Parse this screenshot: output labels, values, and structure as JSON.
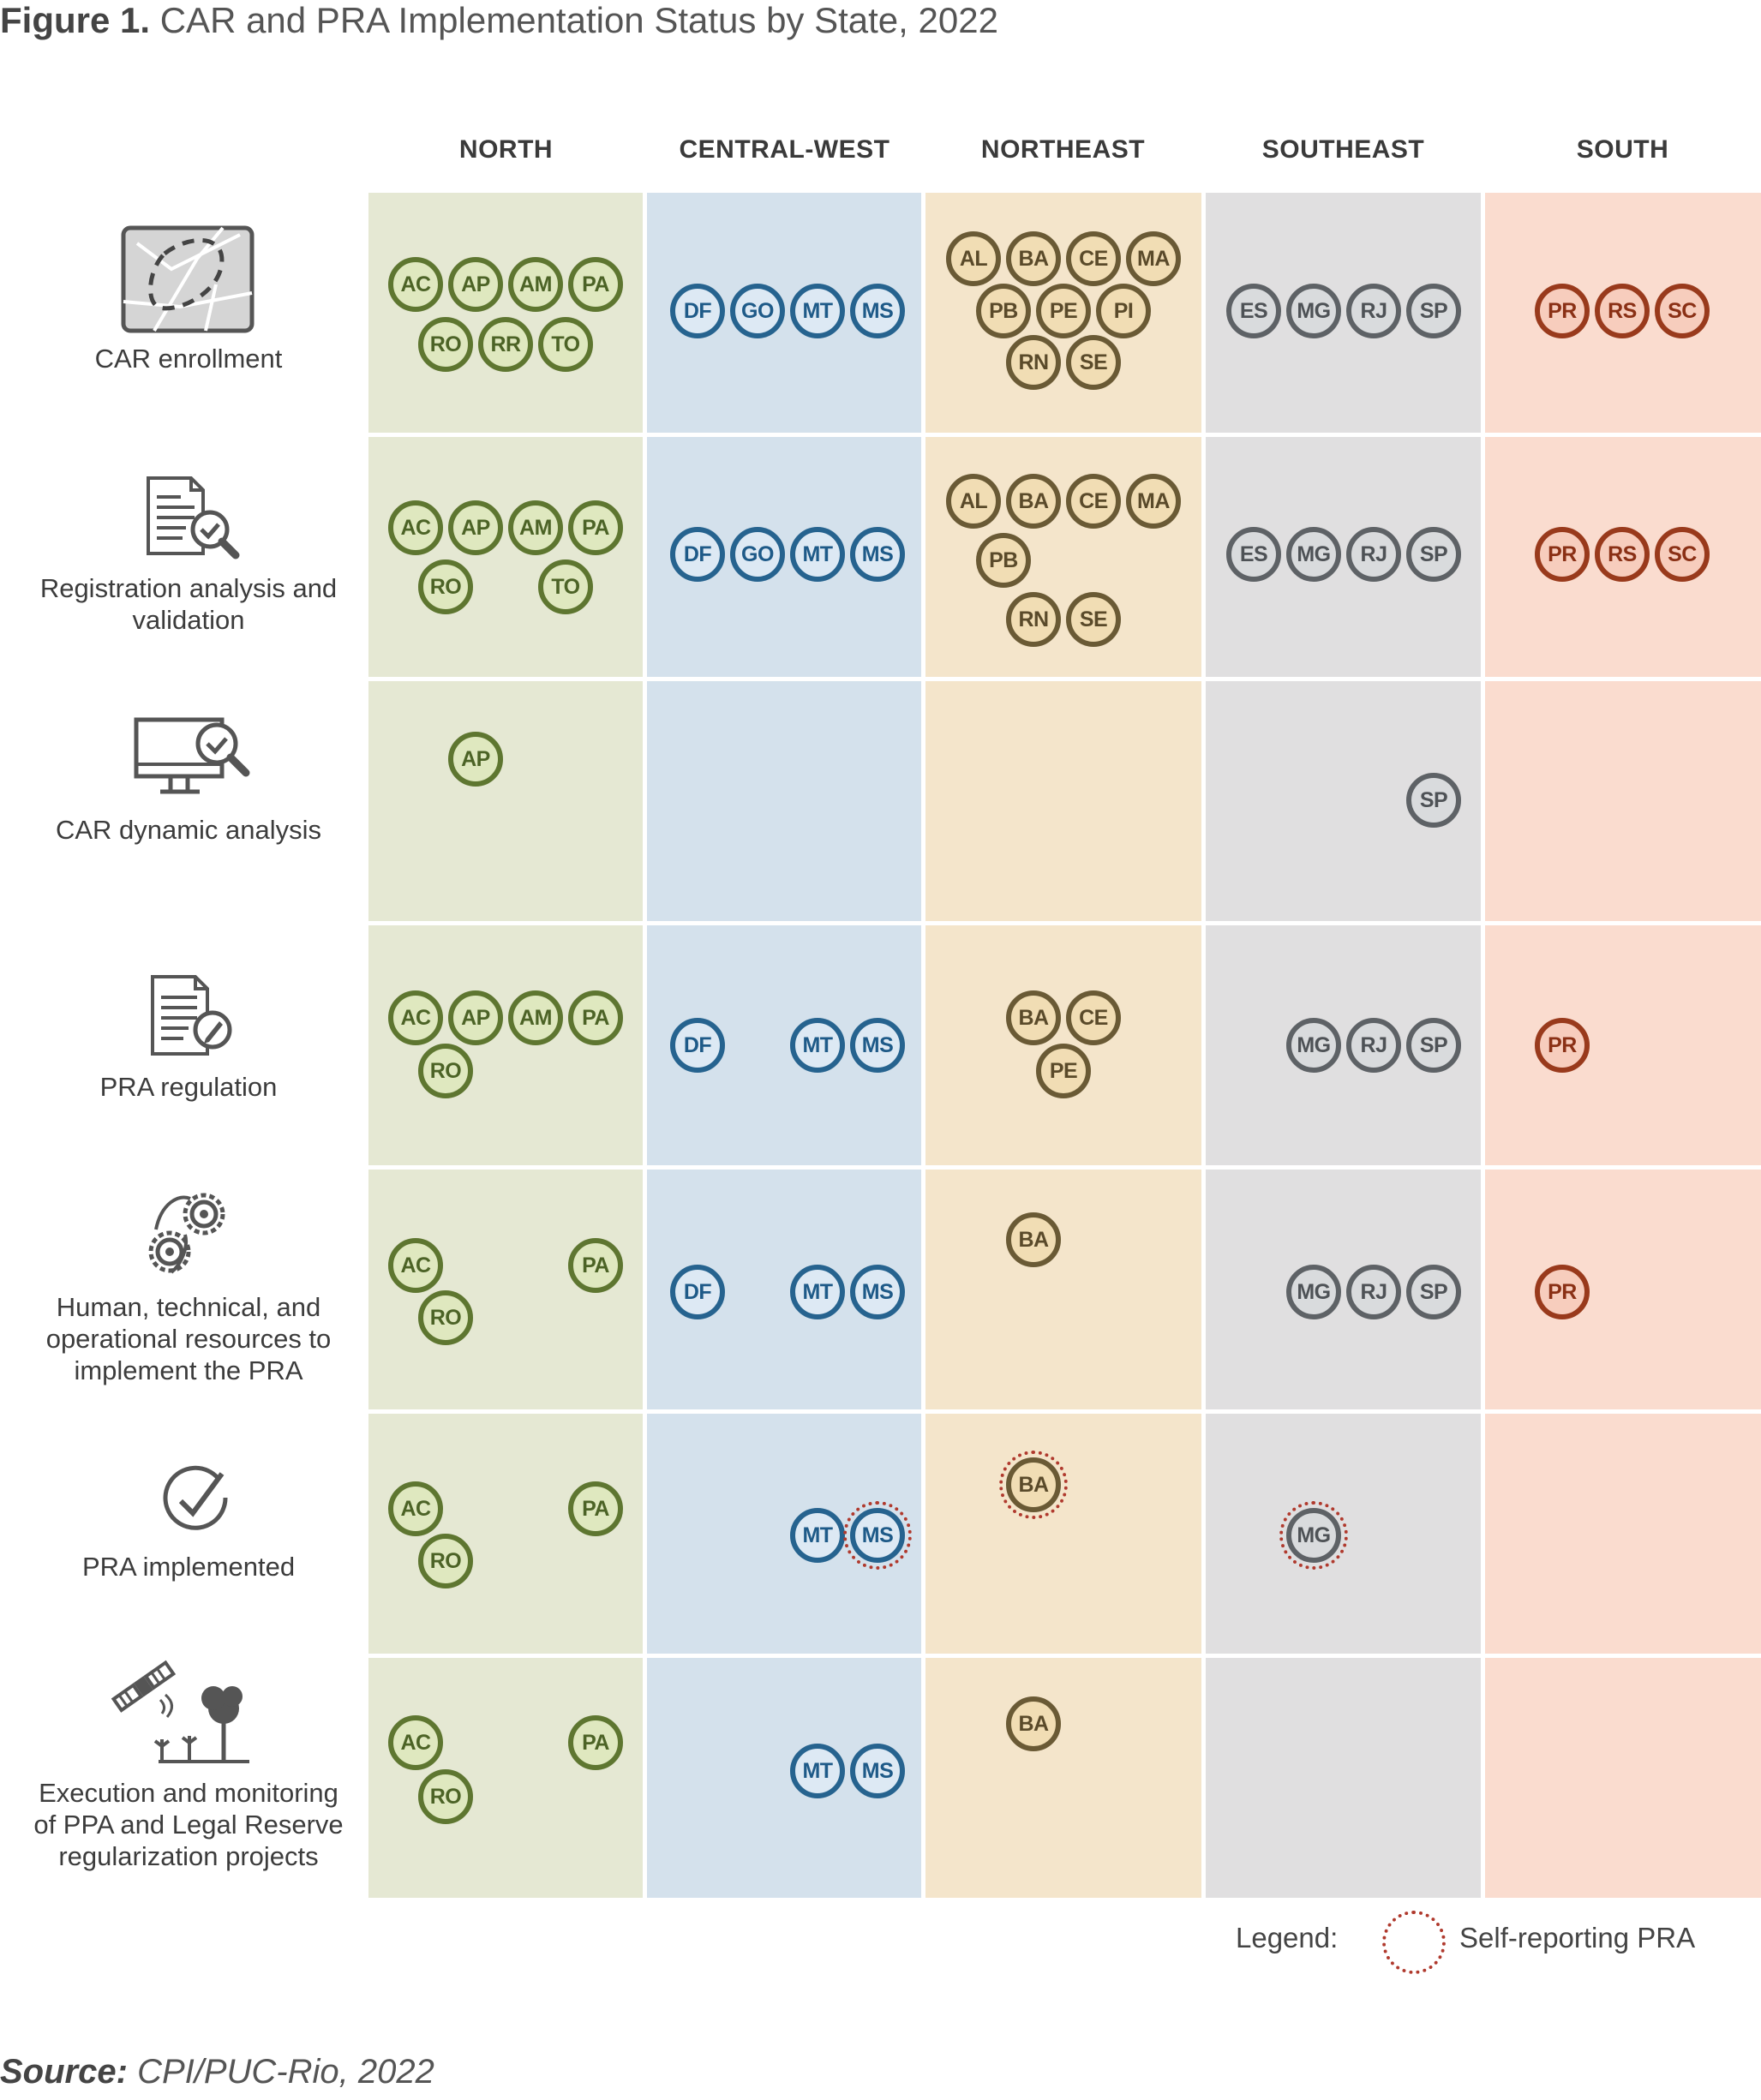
{
  "title": {
    "prefix": "Figure 1.",
    "text": "CAR and PRA Implementation Status by State, 2022"
  },
  "regions": [
    {
      "name": "NORTH",
      "bg": "#e5e8d3",
      "fill": "#dfe8bf",
      "stroke": "#5e7630",
      "text": "#4c6326"
    },
    {
      "name": "CENTRAL-WEST",
      "bg": "#d4e1ec",
      "fill": "#dde9f4",
      "stroke": "#26638f",
      "text": "#1e5a88"
    },
    {
      "name": "NORTHEAST",
      "bg": "#f4e5cb",
      "fill": "#f1ddb4",
      "stroke": "#6a5a35",
      "text": "#5a4a2a"
    },
    {
      "name": "SOUTHEAST",
      "bg": "#e0dfe0",
      "fill": "#d9dbdd",
      "stroke": "#5e6266",
      "text": "#4e5256"
    },
    {
      "name": "SOUTH",
      "bg": "#fadccf",
      "fill": "#f7cdbd",
      "stroke": "#993a1c",
      "text": "#8a3015"
    }
  ],
  "rows": [
    {
      "label": "CAR enrollment",
      "icon": "map-icon",
      "states": [
        [
          "AC",
          "AP",
          "AM",
          "PA",
          "RO",
          "RR",
          "TO"
        ],
        [
          "DF",
          "GO",
          "MT",
          "MS"
        ],
        [
          "AL",
          "BA",
          "CE",
          "MA",
          "PB",
          "PE",
          "PI",
          "RN",
          "SE"
        ],
        [
          "ES",
          "MG",
          "RJ",
          "SP"
        ],
        [
          "PR",
          "RS",
          "SC"
        ]
      ]
    },
    {
      "label": "Registration analysis and validation",
      "icon": "document-check-icon",
      "states": [
        [
          "AC",
          "AP",
          "AM",
          "PA",
          "RO",
          "TO"
        ],
        [
          "DF",
          "GO",
          "MT",
          "MS"
        ],
        [
          "AL",
          "BA",
          "CE",
          "MA",
          "PB",
          "RN",
          "SE"
        ],
        [
          "ES",
          "MG",
          "RJ",
          "SP"
        ],
        [
          "PR",
          "RS",
          "SC"
        ]
      ]
    },
    {
      "label": "CAR dynamic analysis",
      "icon": "monitor-check-icon",
      "states": [
        [
          "AP"
        ],
        [],
        [],
        [
          "SP"
        ],
        []
      ]
    },
    {
      "label": "PRA regulation",
      "icon": "document-pen-icon",
      "states": [
        [
          "AC",
          "AP",
          "AM",
          "PA",
          "RO"
        ],
        [
          "DF",
          "MT",
          "MS"
        ],
        [
          "BA",
          "CE",
          "PE"
        ],
        [
          "MG",
          "RJ",
          "SP"
        ],
        [
          "PR"
        ]
      ]
    },
    {
      "label": "Human, technical, and operational resources to implement the PRA",
      "icon": "gears-icon",
      "states": [
        [
          "AC",
          "PA",
          "RO"
        ],
        [
          "DF",
          "MT",
          "MS"
        ],
        [
          "BA"
        ],
        [
          "MG",
          "RJ",
          "SP"
        ],
        [
          "PR"
        ]
      ]
    },
    {
      "label": "PRA implemented",
      "icon": "checkmark-circle-icon",
      "states": [
        [
          "AC",
          "PA",
          "RO"
        ],
        [
          "MT",
          "MS"
        ],
        [
          "BA"
        ],
        [
          "MG"
        ],
        []
      ]
    },
    {
      "label": "Execution and monitoring of PPA and Legal Reserve regularization projects",
      "icon": "satellite-tree-icon",
      "states": [
        [
          "AC",
          "PA",
          "RO"
        ],
        [
          "MT",
          "MS"
        ],
        [
          "BA"
        ],
        [],
        []
      ]
    }
  ],
  "self_reporting": [
    "5|MS",
    "5|BA",
    "5|MG"
  ],
  "legend": {
    "label": "Legend:",
    "item": "Self-reporting PRA"
  },
  "source": {
    "prefix": "Source:",
    "text": "CPI/PUC-Rio, 2022"
  }
}
